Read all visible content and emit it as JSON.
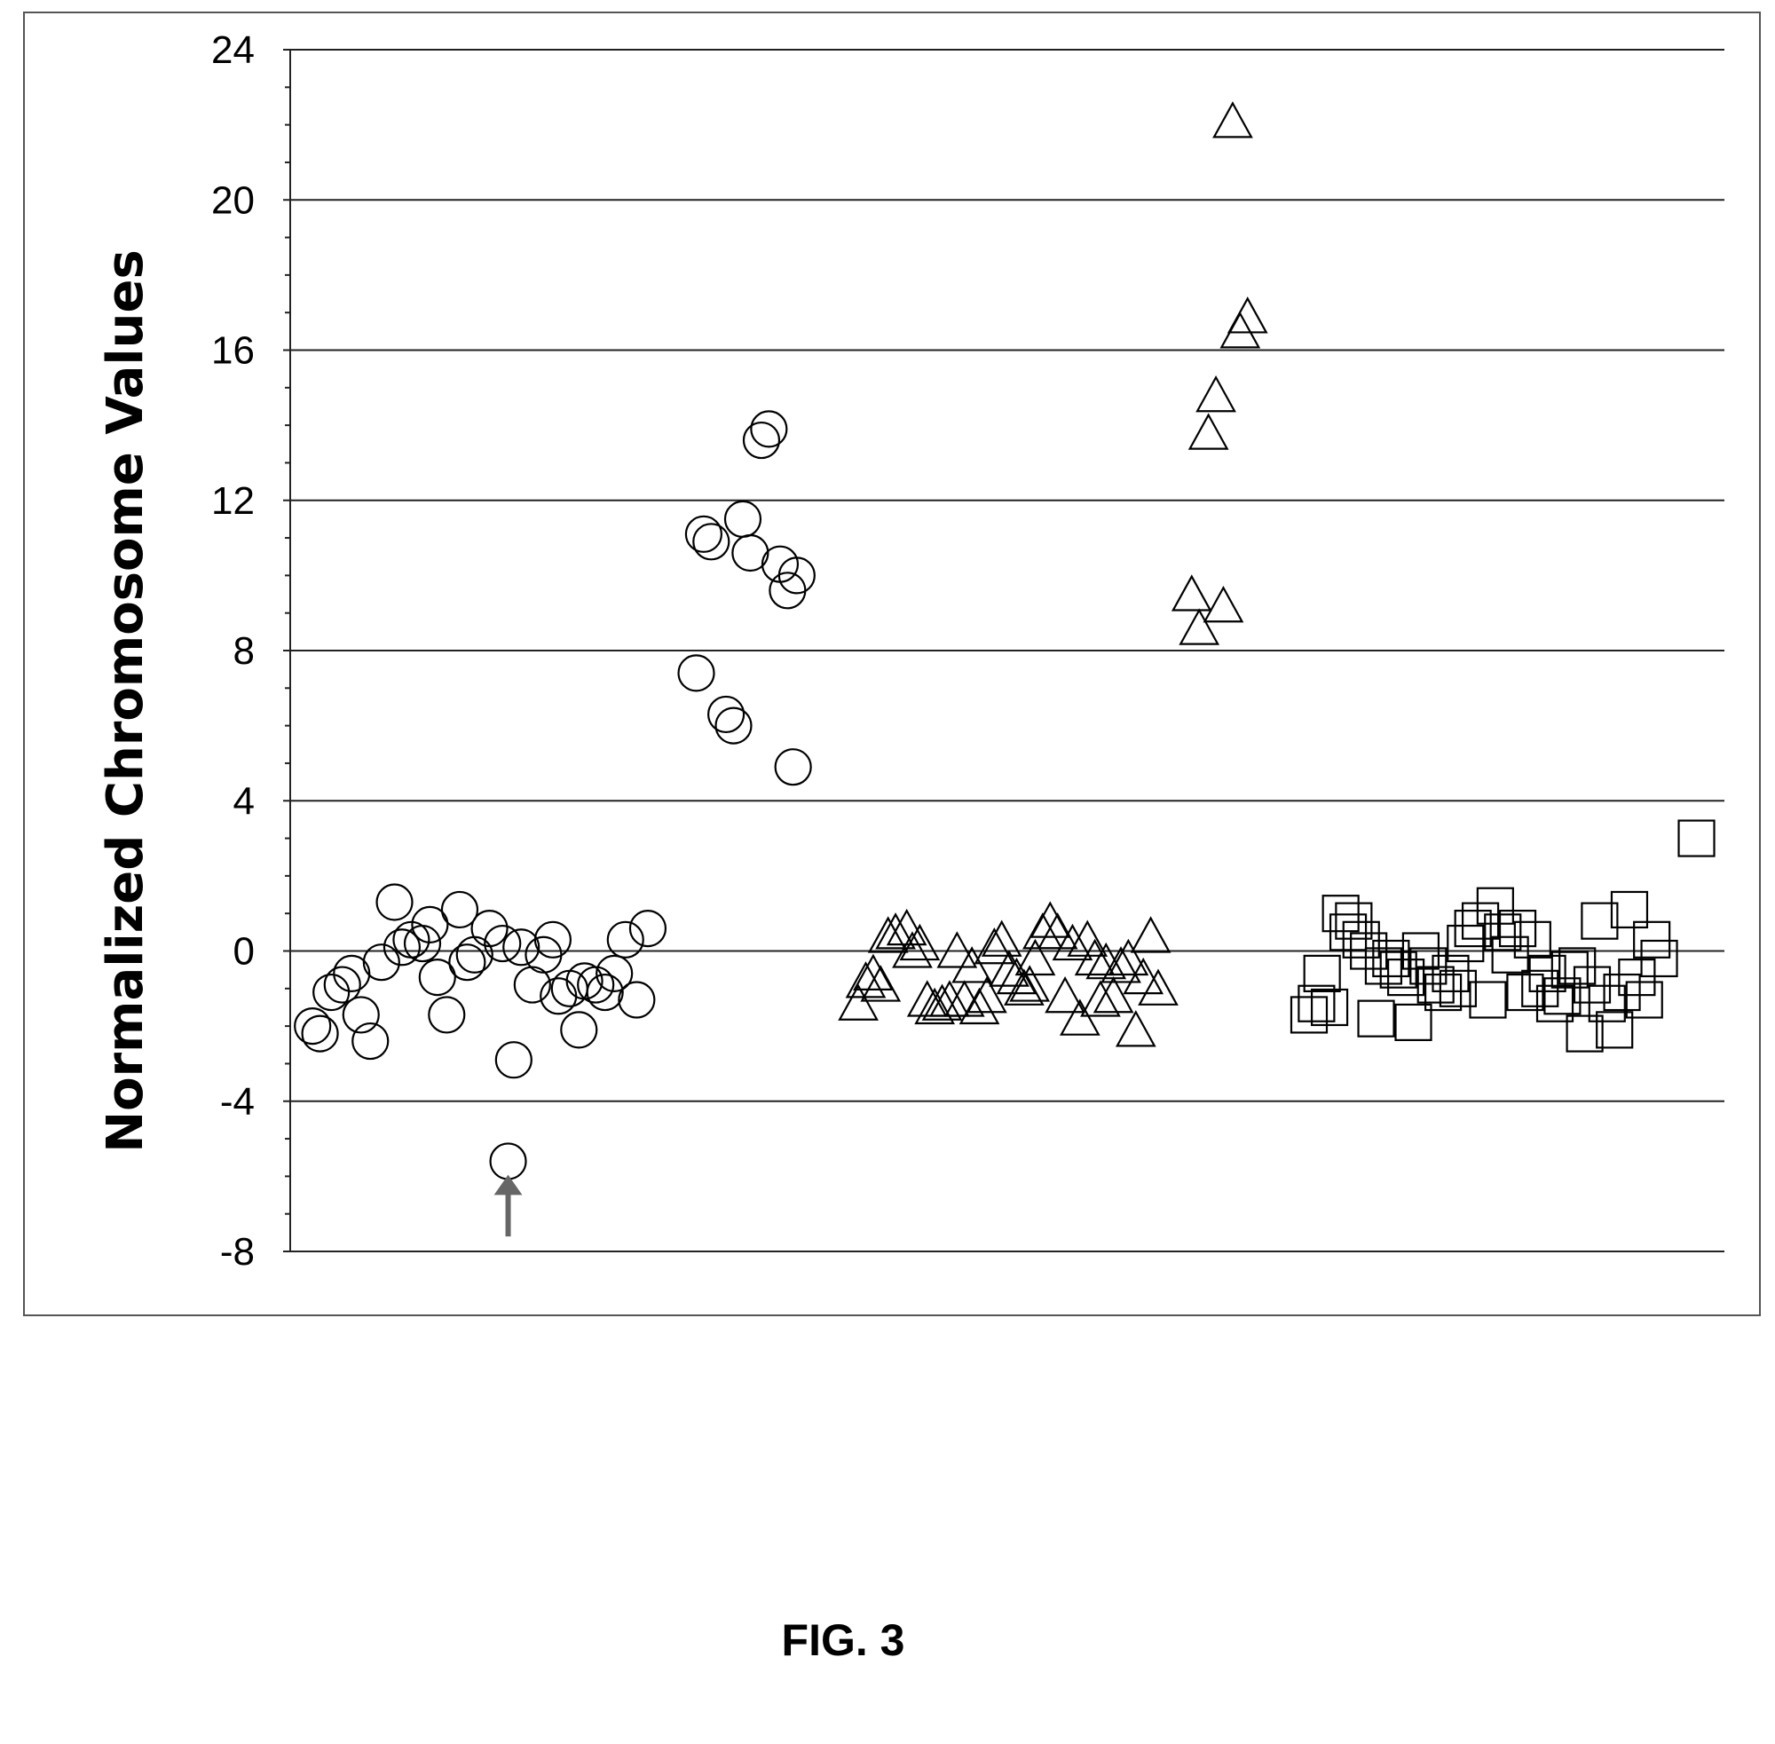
{
  "chart_data": {
    "type": "scatter",
    "ylabel": "Normalized Chromosome Values",
    "ylim": [
      -8,
      24
    ],
    "yticks": [
      -8,
      -4,
      0,
      4,
      8,
      12,
      16,
      20,
      24
    ],
    "grid": true,
    "caption": "FIG. 3",
    "series": [
      {
        "marker": "circle",
        "values": [
          -2.0,
          -2.2,
          -1.1,
          -0.9,
          -0.6,
          -1.7,
          -2.4,
          -0.3,
          1.3,
          0.1,
          0.3,
          0.2,
          0.7,
          -0.7,
          -1.7,
          1.1,
          -0.3,
          -0.1,
          0.6,
          0.2,
          -2.9,
          -5.6,
          0.1,
          -0.9,
          -0.1,
          0.3,
          -1.2,
          -1.0,
          -2.1,
          -0.8,
          -0.9,
          -1.1,
          -0.6,
          0.3,
          -1.3,
          0.6,
          7.4,
          11.1,
          10.9,
          6.3,
          6.0,
          11.5,
          10.6,
          13.6,
          13.9,
          10.3,
          9.6,
          10.0,
          4.9
        ],
        "x": [
          1.2,
          1.6,
          2.2,
          2.8,
          3.3,
          3.8,
          4.3,
          4.9,
          5.6,
          6.0,
          6.5,
          7.1,
          7.5,
          7.9,
          8.4,
          9.1,
          9.5,
          9.9,
          10.7,
          11.4,
          12.0,
          11.7,
          12.4,
          13.0,
          13.6,
          14.1,
          14.4,
          15.0,
          15.5,
          15.8,
          16.4,
          16.9,
          17.4,
          18.0,
          18.6,
          19.2,
          21.8,
          22.2,
          22.6,
          23.4,
          23.8,
          24.3,
          24.7,
          25.3,
          25.7,
          26.3,
          26.7,
          27.2,
          27.0
        ]
      },
      {
        "marker": "triangle",
        "values": [
          -1.4,
          -0.8,
          -0.6,
          -0.9,
          0.4,
          0.5,
          0.6,
          0.0,
          0.2,
          -1.3,
          -1.5,
          -1.4,
          -1.3,
          0.0,
          -1.3,
          -0.4,
          -1.5,
          -1.2,
          0.1,
          0.3,
          -0.5,
          -0.7,
          -1.0,
          -0.9,
          -0.2,
          0.5,
          0.8,
          0.5,
          -1.2,
          0.2,
          -1.8,
          0.3,
          -0.2,
          -1.3,
          -0.3,
          -1.2,
          -0.4,
          -0.2,
          -2.1,
          -0.7,
          0.4,
          -1.0,
          9.5,
          8.6,
          13.8,
          14.8,
          9.2,
          22.1,
          16.5,
          16.9
        ],
        "x": [
          30.5,
          30.9,
          31.3,
          31.7,
          32.1,
          32.5,
          33.1,
          33.4,
          33.8,
          34.2,
          34.6,
          35.0,
          35.4,
          35.8,
          36.2,
          36.6,
          37.0,
          37.4,
          37.8,
          38.2,
          38.6,
          39.0,
          39.4,
          39.7,
          40.0,
          40.4,
          40.8,
          41.2,
          41.6,
          42.0,
          42.4,
          42.8,
          43.2,
          43.5,
          43.8,
          44.2,
          44.6,
          45.0,
          45.4,
          45.8,
          46.2,
          46.6,
          48.4,
          48.8,
          49.3,
          49.7,
          50.1,
          50.6,
          51.0,
          51.4
        ]
      },
      {
        "marker": "square",
        "values": [
          -1.7,
          -1.4,
          -0.6,
          -1.5,
          1.0,
          0.5,
          0.8,
          0.3,
          0.0,
          -1.8,
          -0.4,
          -0.2,
          -0.5,
          -0.7,
          -1.9,
          0.0,
          -0.4,
          -0.9,
          -1.1,
          -0.6,
          -1.0,
          0.2,
          0.6,
          0.8,
          -1.3,
          1.2,
          0.5,
          -0.1,
          0.6,
          -1.1,
          0.3,
          -1.0,
          -0.6,
          -1.4,
          -1.2,
          -0.5,
          -0.4,
          -2.2,
          -0.9,
          0.8,
          -1.4,
          -2.1,
          -1.1,
          1.1,
          -0.7,
          -1.3,
          0.3,
          -0.2,
          3.0
        ],
        "x": [
          54.7,
          55.1,
          55.4,
          55.8,
          56.4,
          56.8,
          57.1,
          57.5,
          57.9,
          58.3,
          58.7,
          59.1,
          59.5,
          59.9,
          60.3,
          60.7,
          61.1,
          61.5,
          61.9,
          62.3,
          62.7,
          63.1,
          63.5,
          63.9,
          64.3,
          64.7,
          65.1,
          65.5,
          65.9,
          66.3,
          66.7,
          67.1,
          67.5,
          67.9,
          68.3,
          68.7,
          69.1,
          69.5,
          69.9,
          70.3,
          70.7,
          71.1,
          71.5,
          71.9,
          72.3,
          72.7,
          73.1,
          73.5,
          75.5
        ]
      }
    ],
    "xlim": [
      0,
      77
    ],
    "annotations": [
      {
        "kind": "arrow",
        "x": 11.7,
        "y_tip": -6.0,
        "y_tail": -7.6
      }
    ]
  }
}
